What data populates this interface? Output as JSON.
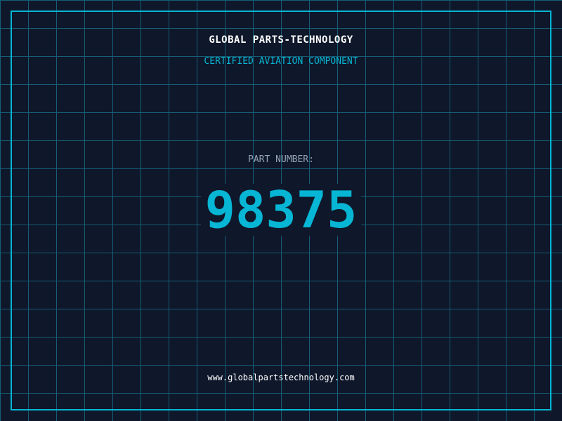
{
  "header": {
    "title": "GLOBAL PARTS-TECHNOLOGY",
    "subtitle": "CERTIFIED AVIATION COMPONENT"
  },
  "part": {
    "label": "PART NUMBER:",
    "number": "98375"
  },
  "footer": {
    "url": "www.globalpartstechnology.com"
  },
  "colors": {
    "background": "#0f172a",
    "accent": "#06b6d4",
    "grid": "#155e75",
    "label": "#94a3b8"
  }
}
